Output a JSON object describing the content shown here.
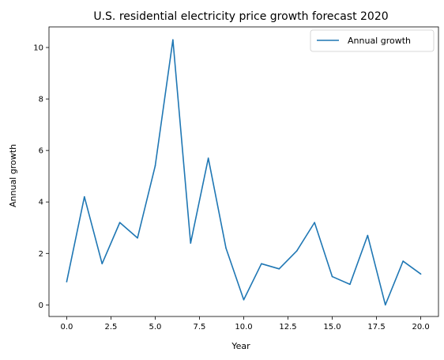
{
  "chart_data": {
    "type": "line",
    "title": "U.S. residential electricity price growth forecast 2020",
    "xlabel": "Year",
    "ylabel": "Annual growth",
    "xlim": [
      -1,
      21
    ],
    "ylim": [
      -0.45,
      10.8
    ],
    "xticks": [
      0.0,
      2.5,
      5.0,
      7.5,
      10.0,
      12.5,
      15.0,
      17.5,
      20.0
    ],
    "xtick_labels": [
      "0.0",
      "2.5",
      "5.0",
      "7.5",
      "10.0",
      "12.5",
      "15.0",
      "17.5",
      "20.0"
    ],
    "yticks": [
      0,
      2,
      4,
      6,
      8,
      10
    ],
    "ytick_labels": [
      "0",
      "2",
      "4",
      "6",
      "8",
      "10"
    ],
    "grid": false,
    "legend_position": "top-right",
    "series": [
      {
        "name": "Annual growth",
        "color": "#1f77b4",
        "x": [
          0,
          1,
          2,
          3,
          4,
          5,
          6,
          7,
          8,
          9,
          10,
          11,
          12,
          13,
          14,
          15,
          16,
          17,
          18,
          19,
          20
        ],
        "values": [
          0.9,
          4.2,
          1.6,
          3.2,
          2.6,
          5.4,
          10.3,
          2.4,
          5.7,
          2.2,
          0.2,
          1.6,
          1.4,
          2.1,
          3.2,
          1.1,
          0.8,
          2.7,
          0.0,
          1.7,
          1.2
        ]
      }
    ]
  }
}
